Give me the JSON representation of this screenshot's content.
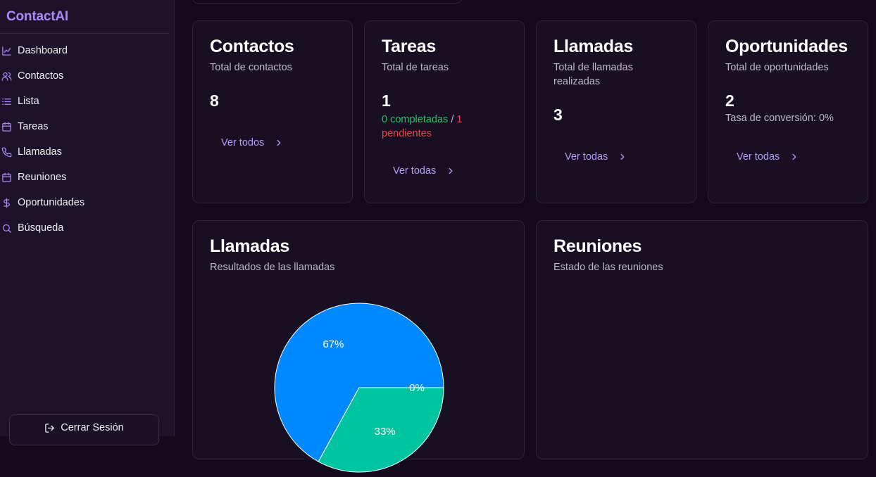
{
  "app": {
    "brand": "ContactAI"
  },
  "sidebar": {
    "items": [
      {
        "label": "Dashboard",
        "icon": "chart-line-icon"
      },
      {
        "label": "Contactos",
        "icon": "users-icon"
      },
      {
        "label": "Lista",
        "icon": "list-icon"
      },
      {
        "label": "Tareas",
        "icon": "calendar-icon"
      },
      {
        "label": "Llamadas",
        "icon": "phone-icon"
      },
      {
        "label": "Reuniones",
        "icon": "calendar-icon"
      },
      {
        "label": "Oportunidades",
        "icon": "dollar-icon"
      },
      {
        "label": "Búsqueda",
        "icon": "search-icon"
      }
    ],
    "logout_label": "Cerrar Sesión"
  },
  "cards": {
    "contactos": {
      "title": "Contactos",
      "subtitle": "Total de contactos",
      "value": "8",
      "link": "Ver todos"
    },
    "tareas": {
      "title": "Tareas",
      "subtitle": "Total de tareas",
      "value": "1",
      "completed": "0 completadas",
      "separator": " / ",
      "pending": "1 pendientes",
      "link": "Ver todas"
    },
    "llamadas": {
      "title": "Llamadas",
      "subtitle": "Total de llamadas realizadas",
      "value": "3",
      "link": "Ver todas"
    },
    "oportunidades": {
      "title": "Oportunidades",
      "subtitle": "Total de oportunidades",
      "value": "2",
      "rate": "Tasa de conversión: 0%",
      "link": "Ver todas"
    }
  },
  "calls_chart": {
    "title": "Llamadas",
    "subtitle": "Resultados de las llamadas"
  },
  "meetings_chart": {
    "title": "Reuniones",
    "subtitle": "Estado de las reuniones"
  },
  "chart_data": {
    "type": "pie",
    "title": "Llamadas",
    "subtitle": "Resultados de las llamadas",
    "slices": [
      {
        "label": "67%",
        "value": 67,
        "color": "#0088fe"
      },
      {
        "label": "33%",
        "value": 33,
        "color": "#00c49f"
      },
      {
        "label": "0%",
        "value": 0,
        "color": "#ffbb28"
      }
    ]
  },
  "colors": {
    "accent": "#a78bfa",
    "background": "#130b1d",
    "card": "#180f23",
    "success": "#22c55e",
    "danger": "#ef4444"
  }
}
